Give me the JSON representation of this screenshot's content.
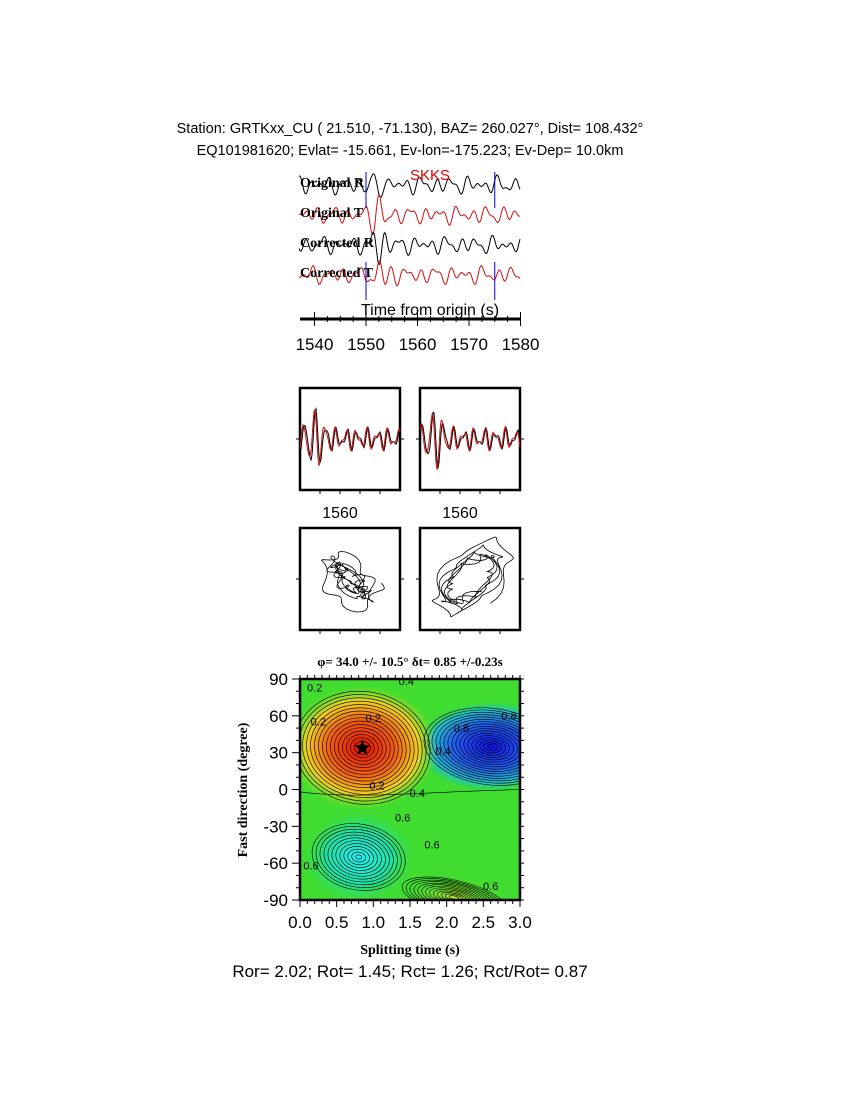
{
  "header": {
    "line1": "Station: GRTKxx_CU (  21.510,  -71.130), BAZ=  260.027°, Dist=  108.432°",
    "line2": "EQ101981620; Evlat= -15.661, Ev-lon=-175.223; Ev-Dep= 10.0km"
  },
  "colors": {
    "black_trace": "#000000",
    "red_trace": "#d01010",
    "window_marker": "#0000cc",
    "phase_label": "#e00000"
  },
  "chart_data": [
    {
      "type": "line",
      "phase_label": "SKKS",
      "xlabel": "Time from origin (s)",
      "xlim": [
        1537,
        1580
      ],
      "xticks": [
        "1540",
        "1550",
        "1560",
        "1570",
        "1580"
      ],
      "window_markers": [
        1550,
        1575
      ],
      "series": [
        {
          "name": "Original R",
          "color": "#000000"
        },
        {
          "name": "Original T",
          "color": "#d01010"
        },
        {
          "name": "Corrected R",
          "color": "#000000"
        },
        {
          "name": "Corrected T",
          "color": "#d01010"
        }
      ]
    },
    {
      "type": "line",
      "panel": "original-window",
      "xtick": "1560"
    },
    {
      "type": "line",
      "panel": "corrected-window",
      "xtick": "1560"
    },
    {
      "type": "scatter",
      "panel": "particle-motion-original"
    },
    {
      "type": "scatter",
      "panel": "particle-motion-corrected"
    },
    {
      "type": "heatmap",
      "title": "φ= 34.0 +/- 10.5° δt= 0.85 +/-0.23s",
      "xlabel": "Splitting time (s)",
      "ylabel": "Fast direction (degree)",
      "xlim": [
        0,
        3
      ],
      "ylim": [
        -90,
        90
      ],
      "xticks": [
        "0.0",
        "0.5",
        "1.0",
        "1.5",
        "2.0",
        "2.5",
        "3.0"
      ],
      "yticks": [
        "90",
        "60",
        "30",
        "0",
        "-30",
        "-60",
        "-90"
      ],
      "best": {
        "dt": 0.85,
        "phi": 34.0
      },
      "contour_labels": [
        "0.4",
        "0.2",
        "0.2",
        "0.2",
        "0.4",
        "0.6",
        "0.8",
        "0.8",
        "0.2",
        "0.4",
        "0.6",
        "0.6",
        "0.6"
      ]
    }
  ],
  "footer": "Ror= 2.02; Rot= 1.45; Rct= 1.26; Rct/Rot= 0.87"
}
